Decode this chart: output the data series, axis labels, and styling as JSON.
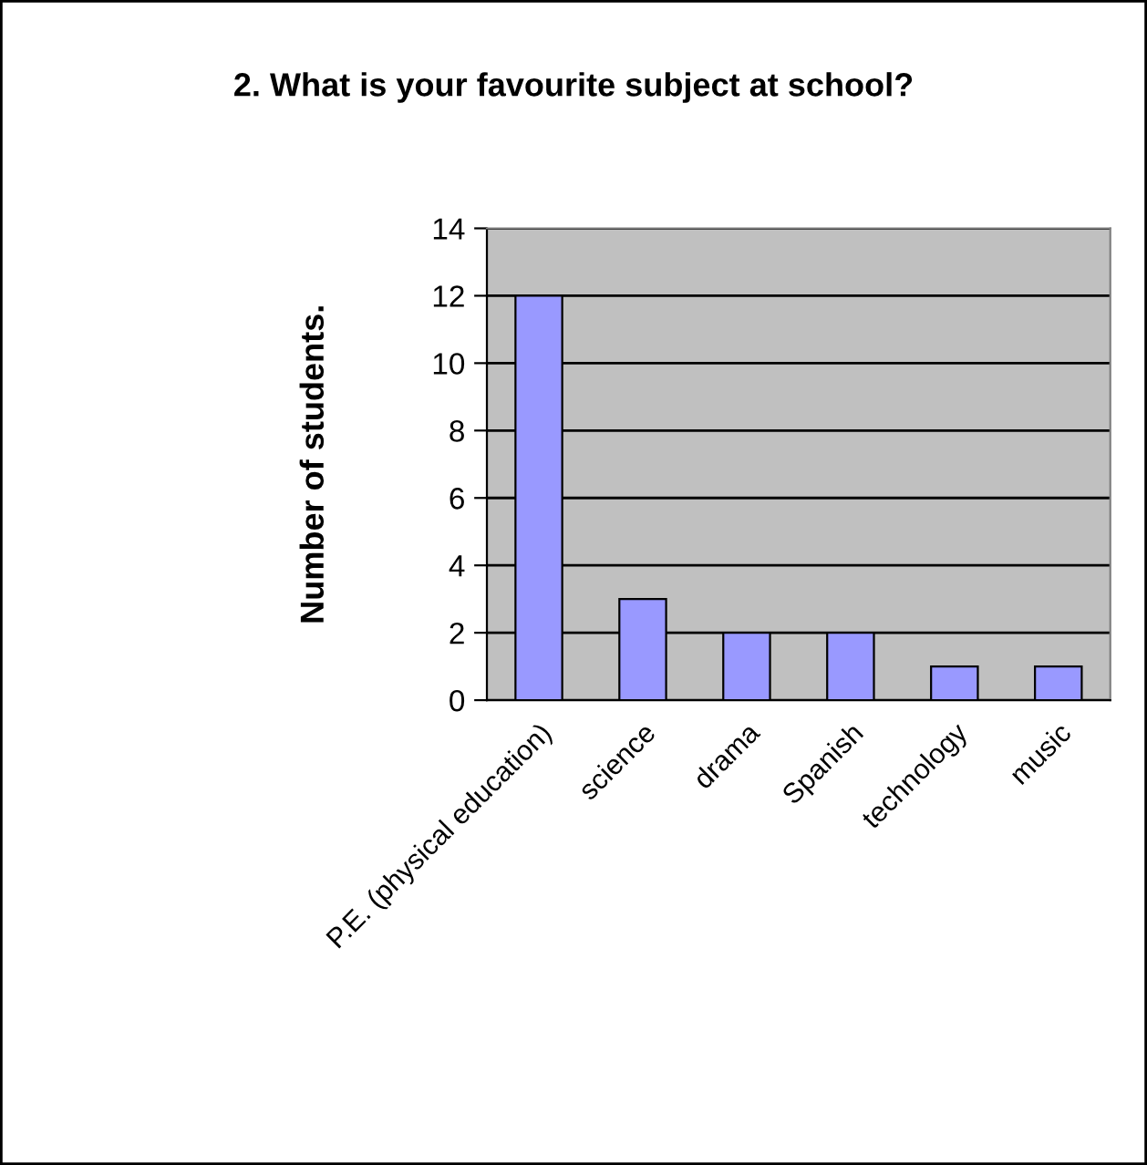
{
  "chart_data": {
    "type": "bar",
    "title": "2. What is your favourite subject at school?",
    "ylabel": "Number of students.",
    "categories": [
      "P.E. (physical education)",
      "science",
      "drama",
      "Spanish",
      "technology",
      "music"
    ],
    "values": [
      12,
      3,
      2,
      2,
      1,
      1
    ],
    "color": "#9999ff",
    "ylim": [
      0,
      14
    ],
    "yticks": [
      0,
      2,
      4,
      6,
      8,
      10,
      12,
      14
    ],
    "grid": "y",
    "legend": false
  }
}
